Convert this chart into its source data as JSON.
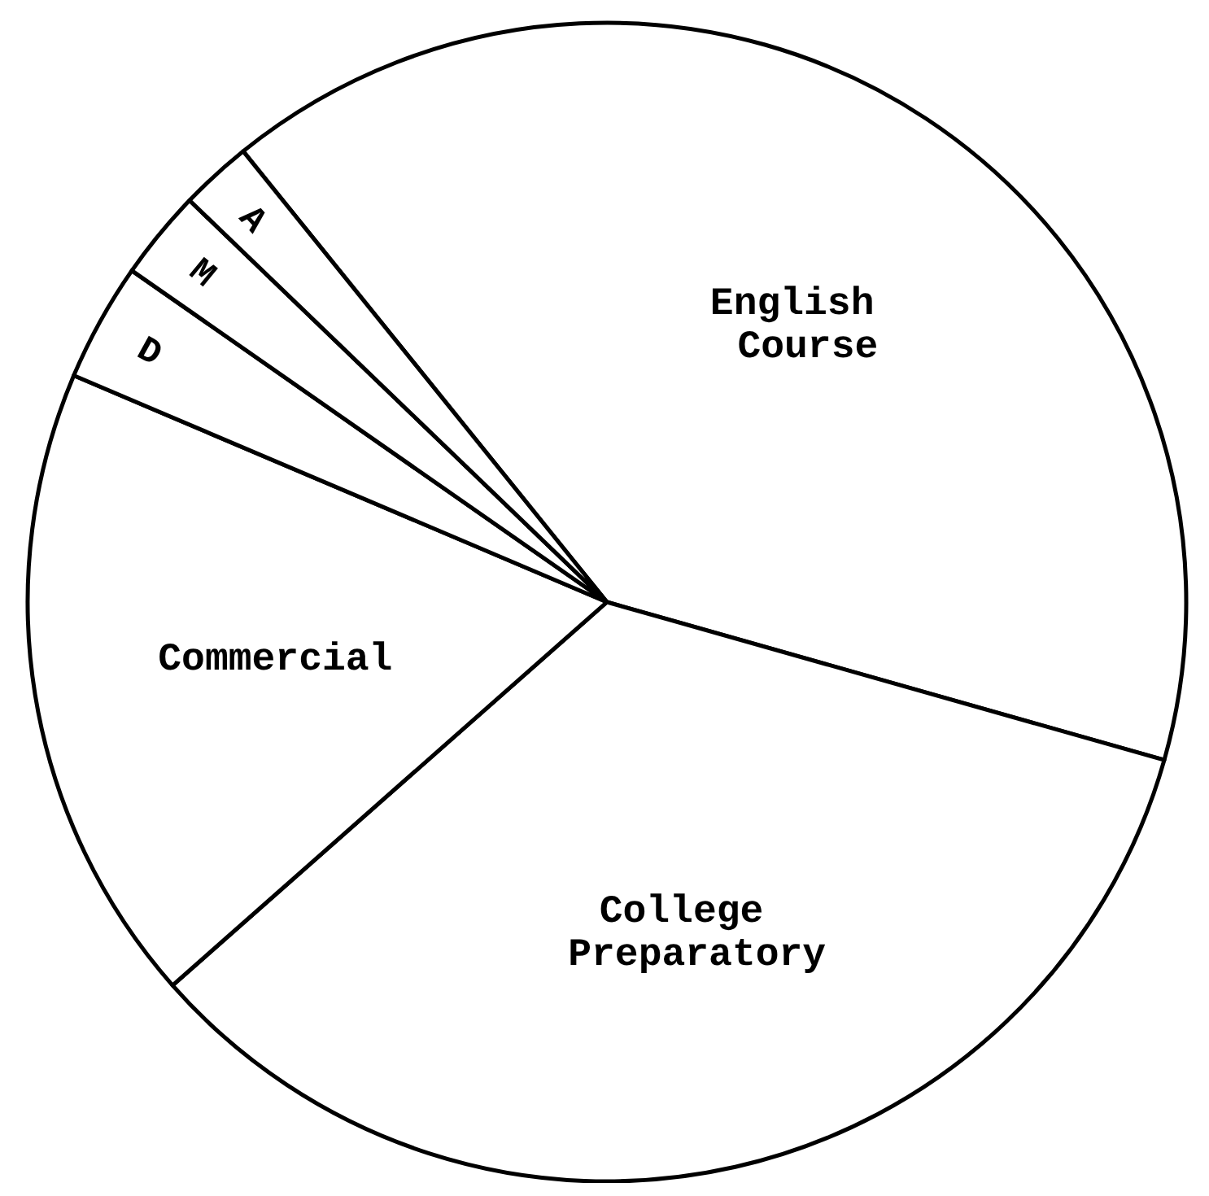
{
  "chart_data": {
    "type": "pie",
    "categories": [
      "English\nCourse",
      "College\nPreparatory",
      "Commercial",
      "D",
      "M",
      "A"
    ],
    "values": [
      40.2,
      34.1,
      17.9,
      3.3,
      2.5,
      2.0
    ],
    "colors": [
      "#ffffff",
      "#ffffff",
      "#ffffff",
      "#ffffff",
      "#ffffff",
      "#ffffff"
    ]
  }
}
